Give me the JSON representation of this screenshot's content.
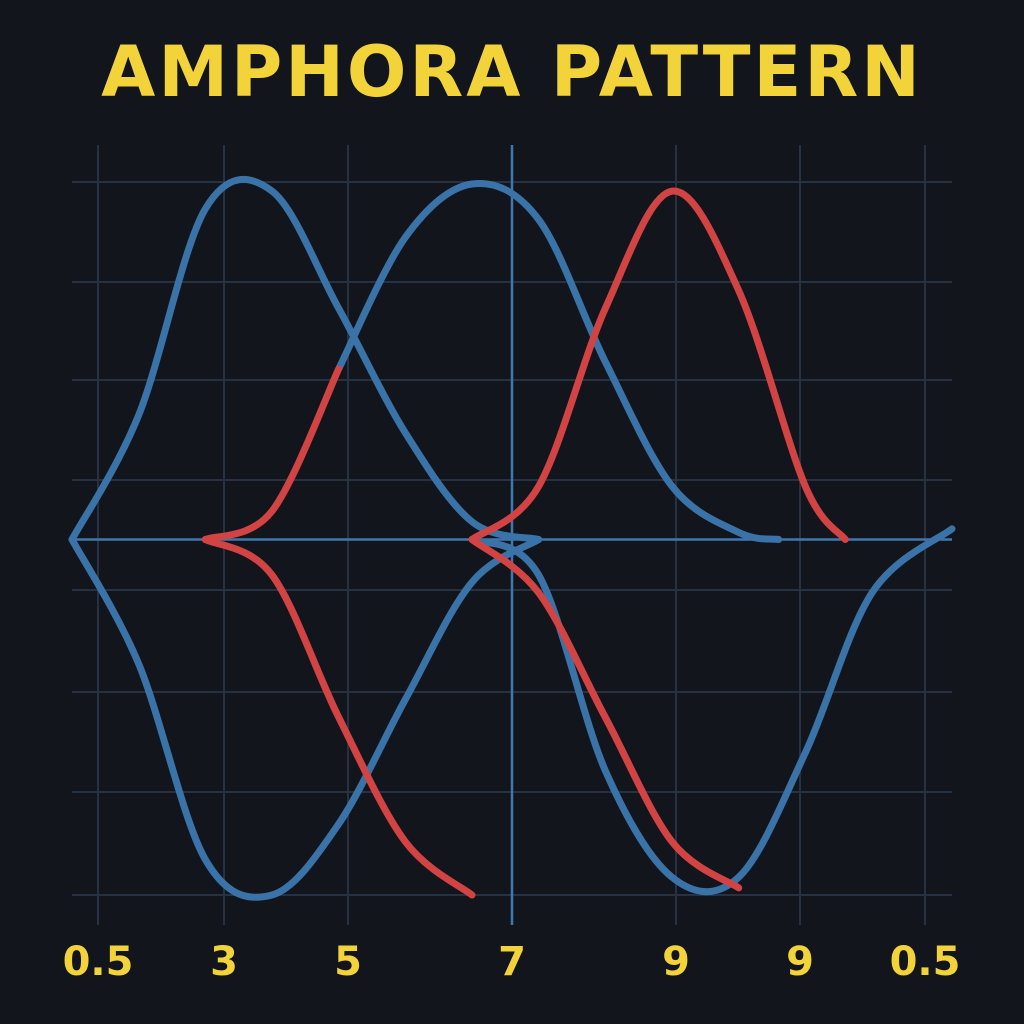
{
  "chart_data": {
    "type": "line",
    "title": "AMPHORA PATTERN",
    "xlabel": "",
    "ylabel": "",
    "x_tick_labels": [
      "0.5",
      "3",
      "5",
      "7",
      "9",
      "9",
      "0.5"
    ],
    "ylim": [
      -1,
      1
    ],
    "grid": true,
    "legend": "none",
    "colors": {
      "background": "#12151b",
      "grid": "#263142",
      "axis": "#3f78b0",
      "title": "#f2d33a",
      "tick": "#f2d33a",
      "blue": "#3a73a8",
      "red": "#d24443"
    },
    "series": [
      {
        "color": "blue",
        "points": [
          [
            0,
            0
          ],
          [
            0.5,
            0.35
          ],
          [
            1,
            0.93
          ],
          [
            1.5,
            0.98
          ],
          [
            2,
            0.65
          ],
          [
            2.5,
            0.3
          ],
          [
            3,
            0.05
          ],
          [
            3.5,
            0
          ]
        ]
      },
      {
        "color": "blue",
        "points": [
          [
            0,
            0
          ],
          [
            0.5,
            -0.35
          ],
          [
            1,
            -0.9
          ],
          [
            1.5,
            -1
          ],
          [
            2,
            -0.8
          ],
          [
            2.5,
            -0.45
          ],
          [
            3,
            -0.12
          ],
          [
            3.5,
            0
          ]
        ]
      },
      {
        "color": "blue",
        "points": [
          [
            2,
            0.48
          ],
          [
            2.5,
            0.85
          ],
          [
            3,
            1
          ],
          [
            3.5,
            0.9
          ],
          [
            4,
            0.5
          ],
          [
            4.5,
            0.15
          ],
          [
            5,
            0.02
          ],
          [
            5.3,
            0
          ]
        ]
      },
      {
        "color": "blue",
        "points": [
          [
            3,
            0
          ],
          [
            3.5,
            -0.1
          ],
          [
            4,
            -0.65
          ],
          [
            4.5,
            -0.95
          ],
          [
            5,
            -0.95
          ],
          [
            5.5,
            -0.6
          ],
          [
            6,
            -0.15
          ],
          [
            6.6,
            0.03
          ]
        ]
      },
      {
        "color": "red",
        "points": [
          [
            1,
            0
          ],
          [
            1.5,
            0.08
          ],
          [
            2,
            0.48
          ]
        ]
      },
      {
        "color": "red",
        "points": [
          [
            1,
            0
          ],
          [
            1.5,
            -0.1
          ],
          [
            2,
            -0.5
          ],
          [
            2.5,
            -0.85
          ],
          [
            3,
            -1
          ]
        ]
      },
      {
        "color": "red",
        "points": [
          [
            3,
            0
          ],
          [
            3.5,
            0.15
          ],
          [
            4,
            0.65
          ],
          [
            4.5,
            0.98
          ],
          [
            5,
            0.7
          ],
          [
            5.5,
            0.15
          ],
          [
            5.8,
            0
          ]
        ]
      },
      {
        "color": "red",
        "points": [
          [
            3,
            0
          ],
          [
            3.5,
            -0.15
          ],
          [
            4,
            -0.5
          ],
          [
            4.5,
            -0.85
          ],
          [
            5,
            -0.98
          ]
        ]
      }
    ]
  }
}
